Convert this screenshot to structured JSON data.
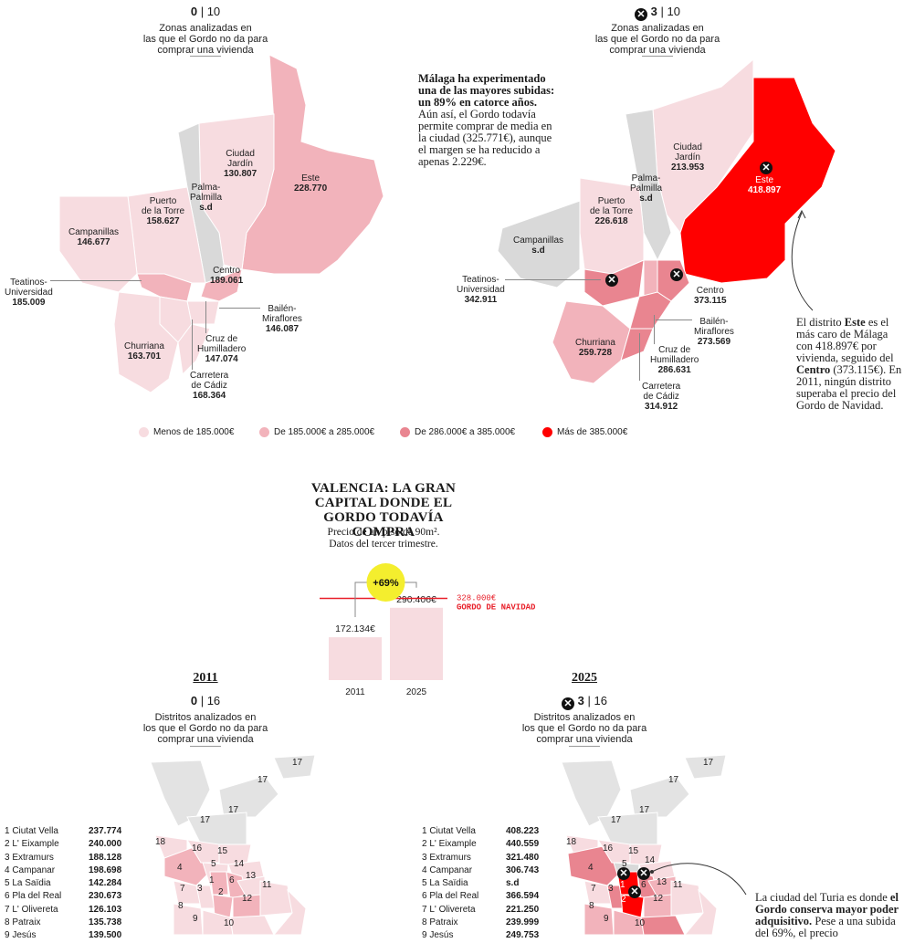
{
  "colors": {
    "tier1": "#f7dce0",
    "tier2": "#f2b3bb",
    "tier3": "#e98590",
    "tier4": "#ff0000",
    "nodata": "#d9d9d9",
    "accent_line": "#e8202a",
    "bubble": "#f4ee2e"
  },
  "malaga": {
    "left": {
      "count_value": "0",
      "count_total": "| 10",
      "desc": [
        "Zonas analizadas en",
        "las que el Gordo no da para",
        "comprar una vivienda"
      ],
      "districts": [
        {
          "name": [
            "Ciudad",
            "Jardín"
          ],
          "value": "130.807"
        },
        {
          "name": [
            "Este"
          ],
          "value": "228.770"
        },
        {
          "name": [
            "Palma-",
            "Palmilla"
          ],
          "value": "s.d"
        },
        {
          "name": [
            "Puerto",
            "de la Torre"
          ],
          "value": "158.627"
        },
        {
          "name": [
            "Campanillas"
          ],
          "value": "146.677"
        },
        {
          "name": [
            "Teatinos-",
            "Universidad"
          ],
          "value": "185.009"
        },
        {
          "name": [
            "Centro"
          ],
          "value": "189.061"
        },
        {
          "name": [
            "Bailén-",
            "Miraflores"
          ],
          "value": "146.087"
        },
        {
          "name": [
            "Cruz de",
            "Humilladero"
          ],
          "value": "147.074"
        },
        {
          "name": [
            "Churriana"
          ],
          "value": "163.701"
        },
        {
          "name": [
            "Carretera",
            "de Cádiz"
          ],
          "value": "168.364"
        }
      ]
    },
    "right": {
      "count_value": "3",
      "count_total": "| 10",
      "desc": [
        "Zonas analizadas en",
        "las que el Gordo no da para",
        "comprar una vivienda"
      ],
      "districts": [
        {
          "name": [
            "Ciudad",
            "Jardín"
          ],
          "value": "213.953"
        },
        {
          "name": [
            "Este"
          ],
          "value": "418.897"
        },
        {
          "name": [
            "Palma-",
            "Palmilla"
          ],
          "value": "s.d"
        },
        {
          "name": [
            "Puerto",
            "de la Torre"
          ],
          "value": "226.618"
        },
        {
          "name": [
            "Campanillas"
          ],
          "value": "s.d"
        },
        {
          "name": [
            "Teatinos-",
            "Universidad"
          ],
          "value": "342.911"
        },
        {
          "name": [
            "Centro"
          ],
          "value": "373.115"
        },
        {
          "name": [
            "Bailén-",
            "Miraflores"
          ],
          "value": "273.569"
        },
        {
          "name": [
            "Cruz de",
            "Humilladero"
          ],
          "value": "286.631"
        },
        {
          "name": [
            "Churriana"
          ],
          "value": "259.728"
        },
        {
          "name": [
            "Carretera",
            "de Cádiz"
          ],
          "value": "314.912"
        }
      ]
    },
    "intro_bold": "Málaga ha experimentado una de las mayores subidas: un 89% en catorce años.",
    "intro_rest": "Aún así, el Gordo todavía permite comprar de media en la ciudad (325.771€), aunque el margen se ha reducido a apenas 2.229€.",
    "note_parts": [
      "El distrito ",
      "Este",
      " es el más caro de Málaga con 418.897€ por vivienda, seguido del ",
      "Centro",
      " (373.115€). En 2011, ningún distrito superaba el precio del Gordo de Navidad."
    ],
    "legend": [
      "Menos de 185.000€",
      "De 185.000€ a 285.000€",
      "De 286.000€ a 385.000€",
      "Más de 385.000€"
    ]
  },
  "valencia": {
    "title": [
      "VALENCIA: LA GRAN",
      "CAPITAL DONDE EL",
      "GORDO TODAVÍA COMPRA"
    ],
    "subtitle": [
      "Precio de un piso de 90m².",
      "Datos del tercer trimestre."
    ],
    "chart_data": {
      "type": "bar",
      "categories": [
        "2011",
        "2025"
      ],
      "values": [
        172134,
        290406
      ],
      "value_labels": [
        "172.134€",
        "290.406€"
      ],
      "reference": {
        "value": 328000,
        "label": "328.000€",
        "name": "GORDO DE NAVIDAD"
      },
      "change_label": "+69%"
    },
    "y2011": {
      "heading": "2011",
      "count_value": "0",
      "count_total": "| 16",
      "desc": [
        "Distritos analizados en",
        "los que el Gordo no da para",
        "comprar una vivienda"
      ],
      "list": [
        {
          "name": "1 Ciutat Vella",
          "value": "237.774"
        },
        {
          "name": "2 L' Eixample",
          "value": "240.000"
        },
        {
          "name": "3 Extramurs",
          "value": "188.128"
        },
        {
          "name": "4 Campanar",
          "value": "198.698"
        },
        {
          "name": "5 La Saïdia",
          "value": "142.284"
        },
        {
          "name": "6 Pla del Real",
          "value": "230.673"
        },
        {
          "name": "7 L' Olivereta",
          "value": "126.103"
        },
        {
          "name": "8 Patraix",
          "value": "135.738"
        },
        {
          "name": "9 Jesús",
          "value": "139.500"
        }
      ]
    },
    "y2025": {
      "heading": "2025",
      "count_value": "3",
      "count_total": "| 16",
      "desc": [
        "Distritos analizados en",
        "los que el Gordo no da para",
        "comprar una vivienda"
      ],
      "list": [
        {
          "name": "1 Ciutat Vella",
          "value": "408.223"
        },
        {
          "name": "2 L' Eixample",
          "value": "440.559"
        },
        {
          "name": "3 Extramurs",
          "value": "321.480"
        },
        {
          "name": "4 Campanar",
          "value": "306.743"
        },
        {
          "name": "5 La Saïdia",
          "value": "s.d"
        },
        {
          "name": "6 Pla del Real",
          "value": "366.594"
        },
        {
          "name": "7 L' Olivereta",
          "value": "221.250"
        },
        {
          "name": "8 Patraix",
          "value": "239.999"
        },
        {
          "name": "9 Jesús",
          "value": "249.753"
        }
      ]
    },
    "map_numbers": [
      "1",
      "2",
      "3",
      "4",
      "5",
      "6",
      "7",
      "8",
      "9",
      "10",
      "11",
      "12",
      "13",
      "14",
      "15",
      "16",
      "17",
      "18"
    ],
    "note_parts": [
      "La ciudad del Turia es donde ",
      "el Gordo conserva mayor poder adquisitivo.",
      " Pese a una subida del 69%, el precio"
    ]
  }
}
